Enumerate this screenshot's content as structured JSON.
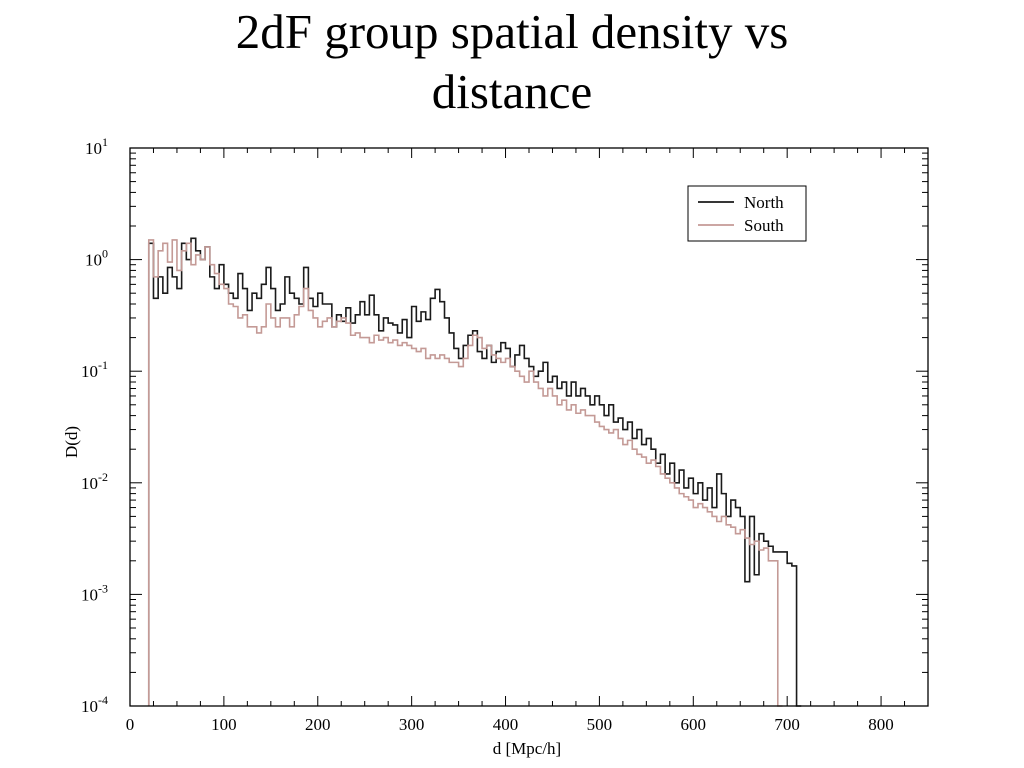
{
  "slide": {
    "title_line1": "2dF group spatial density vs",
    "title_line2": "distance"
  },
  "chart_data": {
    "type": "line",
    "title": "2dF group spatial density vs distance",
    "xlabel": "d [Mpc/h]",
    "ylabel": "D(d)",
    "xlim": [
      0,
      850
    ],
    "ylim": [
      0.0001,
      10
    ],
    "yscale": "log",
    "xticks": [
      0,
      100,
      200,
      300,
      400,
      500,
      600,
      700,
      800
    ],
    "xtick_labels": [
      "0",
      "100",
      "200",
      "300",
      "400",
      "500",
      "600",
      "700",
      "800"
    ],
    "yticks": [
      {
        "value": 10,
        "base": "10",
        "exp": "1"
      },
      {
        "value": 1,
        "base": "10",
        "exp": "0"
      },
      {
        "value": 0.1,
        "base": "10",
        "exp": "-1"
      },
      {
        "value": 0.01,
        "base": "10",
        "exp": "-2"
      },
      {
        "value": 0.001,
        "base": "10",
        "exp": "-3"
      },
      {
        "value": 0.0001,
        "base": "10",
        "exp": "-4"
      }
    ],
    "grid": false,
    "legend_position": "top-right",
    "bin_width": 5,
    "x_start": 25,
    "series": [
      {
        "name": "North",
        "color": "#1a1a1a",
        "values": [
          1.4,
          0.45,
          0.7,
          0.5,
          0.85,
          0.7,
          0.55,
          1.4,
          1.0,
          1.55,
          1.2,
          1.0,
          1.3,
          0.7,
          0.55,
          0.9,
          0.6,
          0.5,
          0.45,
          0.75,
          0.55,
          0.35,
          0.5,
          0.45,
          0.6,
          0.85,
          0.55,
          0.35,
          0.4,
          0.7,
          0.5,
          0.45,
          0.4,
          0.85,
          0.45,
          0.38,
          0.5,
          0.4,
          0.4,
          0.25,
          0.32,
          0.28,
          0.37,
          0.27,
          0.32,
          0.42,
          0.32,
          0.48,
          0.32,
          0.23,
          0.3,
          0.27,
          0.26,
          0.22,
          0.29,
          0.2,
          0.38,
          0.28,
          0.34,
          0.29,
          0.45,
          0.54,
          0.42,
          0.3,
          0.22,
          0.16,
          0.13,
          0.17,
          0.21,
          0.23,
          0.15,
          0.13,
          0.17,
          0.12,
          0.15,
          0.18,
          0.16,
          0.11,
          0.14,
          0.17,
          0.13,
          0.11,
          0.09,
          0.1,
          0.12,
          0.08,
          0.09,
          0.07,
          0.08,
          0.06,
          0.08,
          0.06,
          0.07,
          0.06,
          0.05,
          0.06,
          0.05,
          0.04,
          0.05,
          0.035,
          0.038,
          0.03,
          0.035,
          0.025,
          0.03,
          0.022,
          0.025,
          0.02,
          0.015,
          0.018,
          0.012,
          0.015,
          0.01,
          0.013,
          0.009,
          0.011,
          0.008,
          0.01,
          0.007,
          0.009,
          0.006,
          0.012,
          0.008,
          0.005,
          0.007,
          0.006,
          0.005,
          0.0013,
          0.005,
          0.0015,
          0.0035,
          0.003,
          0.0027,
          0.0024,
          0.0024,
          0.0024,
          0.0019,
          0.0018,
          0.0001
        ],
        "left_edge_value": 0.0001
      },
      {
        "name": "South",
        "color": "#c49a96",
        "values": [
          1.5,
          0.7,
          1.2,
          1.4,
          0.95,
          1.5,
          0.8,
          1.2,
          1.4,
          0.9,
          1.1,
          1.0,
          1.3,
          0.9,
          0.75,
          0.6,
          0.55,
          0.4,
          0.38,
          0.3,
          0.32,
          0.25,
          0.25,
          0.22,
          0.25,
          0.4,
          0.3,
          0.25,
          0.3,
          0.3,
          0.25,
          0.32,
          0.38,
          0.55,
          0.35,
          0.3,
          0.25,
          0.28,
          0.3,
          0.25,
          0.28,
          0.3,
          0.27,
          0.21,
          0.22,
          0.2,
          0.2,
          0.18,
          0.21,
          0.19,
          0.2,
          0.18,
          0.19,
          0.17,
          0.18,
          0.17,
          0.16,
          0.15,
          0.16,
          0.13,
          0.14,
          0.13,
          0.14,
          0.13,
          0.12,
          0.12,
          0.11,
          0.13,
          0.17,
          0.21,
          0.2,
          0.16,
          0.17,
          0.14,
          0.13,
          0.12,
          0.13,
          0.11,
          0.1,
          0.09,
          0.08,
          0.1,
          0.08,
          0.07,
          0.06,
          0.07,
          0.06,
          0.05,
          0.055,
          0.045,
          0.05,
          0.042,
          0.045,
          0.04,
          0.04,
          0.035,
          0.032,
          0.03,
          0.028,
          0.03,
          0.025,
          0.022,
          0.024,
          0.02,
          0.018,
          0.017,
          0.015,
          0.016,
          0.014,
          0.012,
          0.011,
          0.01,
          0.009,
          0.008,
          0.0075,
          0.007,
          0.006,
          0.0065,
          0.006,
          0.0055,
          0.005,
          0.0045,
          0.005,
          0.0042,
          0.004,
          0.0035,
          0.0038,
          0.0032,
          0.0028,
          0.003,
          0.0025,
          0.0026,
          0.002,
          0.002,
          0.0001
        ],
        "left_edge_value": 0.0001
      }
    ]
  }
}
